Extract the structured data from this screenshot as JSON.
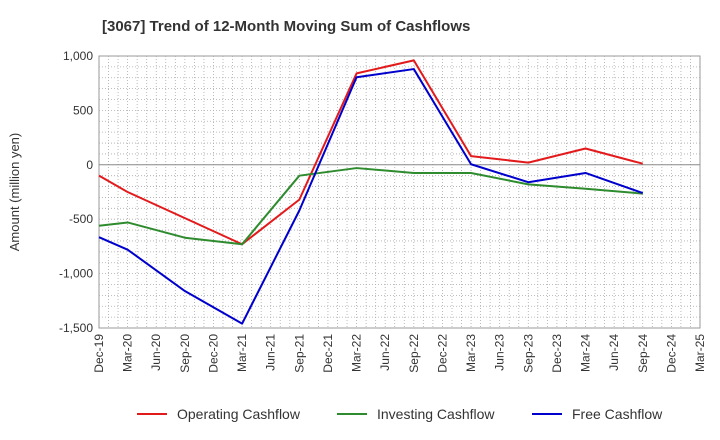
{
  "chart_data": {
    "type": "line",
    "title": "[3067]  Trend of 12-Month Moving Sum of Cashflows",
    "ylabel": "Amount (million yen)",
    "xlabel": "",
    "ylim": [
      -1500,
      1000
    ],
    "yticks": [
      1000,
      500,
      0,
      -500,
      -1000,
      -1500
    ],
    "ytick_labels": [
      "1,000",
      "500",
      "0",
      "-500",
      "-1,000",
      "-1,500"
    ],
    "categories": [
      "Dec-19",
      "Mar-20",
      "Jun-20",
      "Sep-20",
      "Dec-20",
      "Mar-21",
      "Jun-21",
      "Sep-21",
      "Dec-21",
      "Mar-22",
      "Jun-22",
      "Sep-22",
      "Dec-22",
      "Mar-23",
      "Jun-23",
      "Sep-23",
      "Dec-23",
      "Mar-24",
      "Jun-24",
      "Sep-24",
      "Dec-24",
      "Mar-25"
    ],
    "grid": true,
    "legend_position": "bottom",
    "series": [
      {
        "name": "Operating Cashflow",
        "color": "#e31a1c",
        "values": [
          -100,
          -250,
          null,
          -490,
          null,
          -730,
          null,
          -320,
          null,
          840,
          null,
          960,
          null,
          80,
          null,
          20,
          null,
          150,
          null,
          10,
          null,
          null
        ]
      },
      {
        "name": "Investing Cashflow",
        "color": "#2e8b2e",
        "values": [
          -560,
          -530,
          null,
          -670,
          null,
          -730,
          null,
          -100,
          null,
          -30,
          null,
          -75,
          null,
          -75,
          null,
          -180,
          null,
          -220,
          null,
          -265,
          null,
          null
        ]
      },
      {
        "name": "Free Cashflow",
        "color": "#0000cc",
        "values": [
          -665,
          -780,
          null,
          -1160,
          null,
          -1460,
          null,
          -420,
          null,
          805,
          null,
          880,
          null,
          5,
          null,
          -160,
          null,
          -75,
          null,
          -260,
          null,
          null
        ]
      }
    ]
  }
}
